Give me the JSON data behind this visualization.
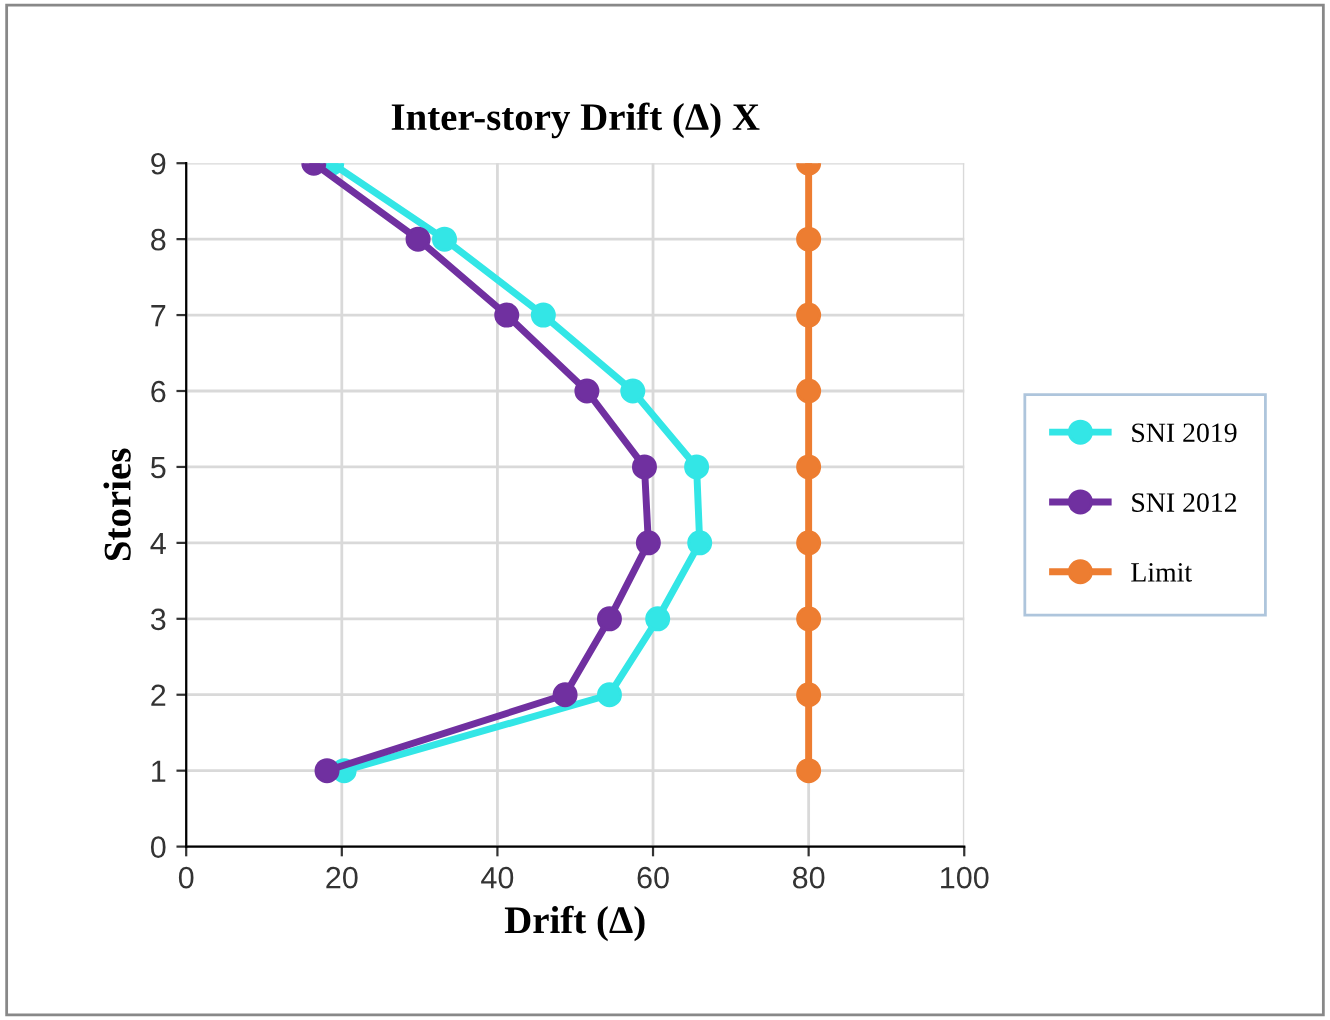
{
  "chart_data": {
    "type": "line",
    "title": "Inter-story Drift (Δ) X",
    "xlabel": "Drift (Δ)",
    "ylabel": "Stories",
    "xlim": [
      0,
      100
    ],
    "xticks": [
      0,
      20,
      40,
      60,
      80,
      100
    ],
    "ylim": [
      0,
      9
    ],
    "yticks": [
      0,
      1,
      2,
      3,
      4,
      5,
      6,
      7,
      8,
      9
    ],
    "grid": true,
    "legend": "right",
    "marker": "circle",
    "line_style": "solid",
    "series": [
      {
        "name": "SNI 2019",
        "color": "#33e6e6",
        "x": [
          20.3,
          54.4,
          60.6,
          66,
          65.6,
          57.4,
          45.9,
          33.2,
          18.7
        ],
        "values": [
          1,
          2,
          3,
          4,
          5,
          6,
          7,
          8,
          9
        ]
      },
      {
        "name": "SNI 2012",
        "color": "#7030a0",
        "x": [
          18.1,
          48.7,
          54.4,
          59.4,
          58.9,
          51.5,
          41.2,
          29.8,
          16.4
        ],
        "values": [
          1,
          2,
          3,
          4,
          5,
          6,
          7,
          8,
          9
        ]
      },
      {
        "name": "Limit",
        "color": "#ed7d31",
        "x": [
          80,
          80,
          80,
          80,
          80,
          80,
          80,
          80,
          80
        ],
        "values": [
          1,
          2,
          3,
          4,
          5,
          6,
          7,
          8,
          9
        ]
      }
    ]
  }
}
